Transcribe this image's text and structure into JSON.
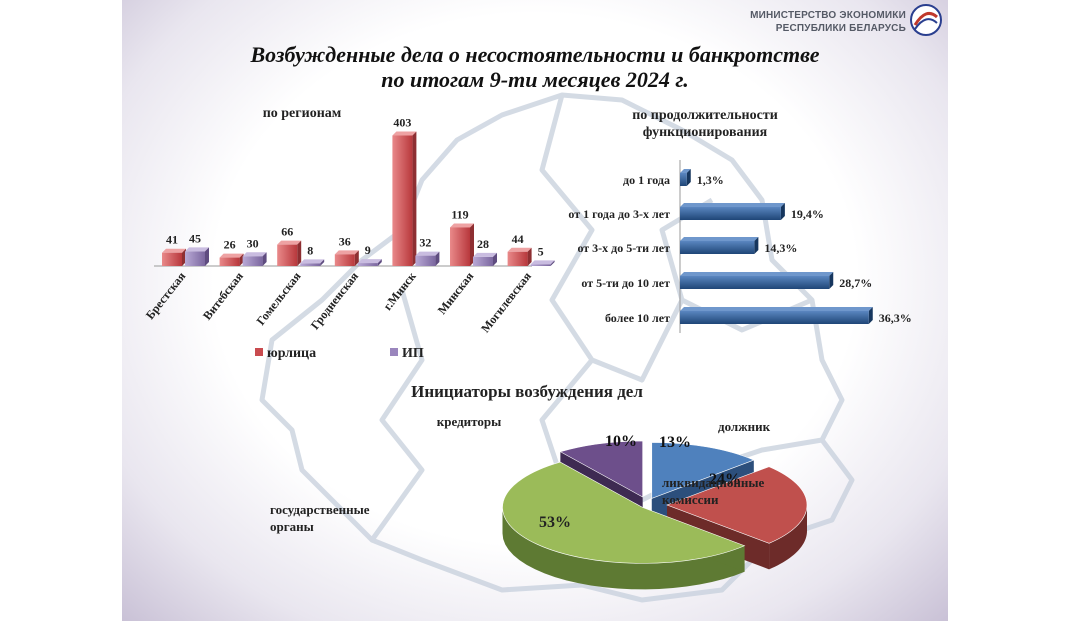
{
  "header": {
    "ministry_line1": "МИНИСТЕРСТВО ЭКОНОМИКИ",
    "ministry_line2": "РЕСПУБЛИКИ БЕЛАРУСЬ",
    "title_line1": "Возбужденные дела о несостоятельности и банкротстве",
    "title_line2": "по итогам 9-ти месяцев 2024 г."
  },
  "colors": {
    "legal": "#d2595c",
    "ip": "#9a86bd",
    "duration_bar": "#2f5b95",
    "pie": [
      "#4f81bd",
      "#c0504d",
      "#9bbb59",
      "#6d4f8b"
    ]
  },
  "chart_data": [
    {
      "type": "bar",
      "title": "по регионам",
      "categories": [
        "Брестская",
        "Витебская",
        "Гомельская",
        "Гродненская",
        "г.Минск",
        "Минская",
        "Могилевская"
      ],
      "series": [
        {
          "name": "юрлица",
          "values": [
            41,
            26,
            66,
            36,
            403,
            119,
            44
          ]
        },
        {
          "name": "ИП",
          "values": [
            45,
            30,
            8,
            9,
            32,
            28,
            5
          ]
        }
      ],
      "legend": "bottom",
      "grid": false
    },
    {
      "type": "bar",
      "orientation": "horizontal",
      "title_line1": "по продолжительности",
      "title_line2": "функционирования",
      "categories": [
        "до 1 года",
        "от 1 года до 3-х лет",
        "от 3-х до 5-ти лет",
        "от 5-ти до 10 лет",
        "более 10 лет"
      ],
      "values": [
        1.3,
        19.4,
        14.3,
        28.7,
        36.3
      ],
      "labels": [
        "1,3%",
        "19,4%",
        "14,3%",
        "28,7%",
        "36,3%"
      ],
      "grid": false
    },
    {
      "type": "pie",
      "title": "Инициаторы возбуждения дел",
      "categories": [
        "должник",
        "ликвидационные комиссии",
        "государственные органы",
        "кредиторы"
      ],
      "category_lines": [
        [
          "должник"
        ],
        [
          "ликвидационные",
          "комиссии"
        ],
        [
          "государственные",
          "органы"
        ],
        [
          "кредиторы"
        ]
      ],
      "values": [
        13,
        24,
        53,
        10
      ],
      "labels": [
        "13%",
        "24%",
        "53%",
        "10%"
      ]
    }
  ]
}
